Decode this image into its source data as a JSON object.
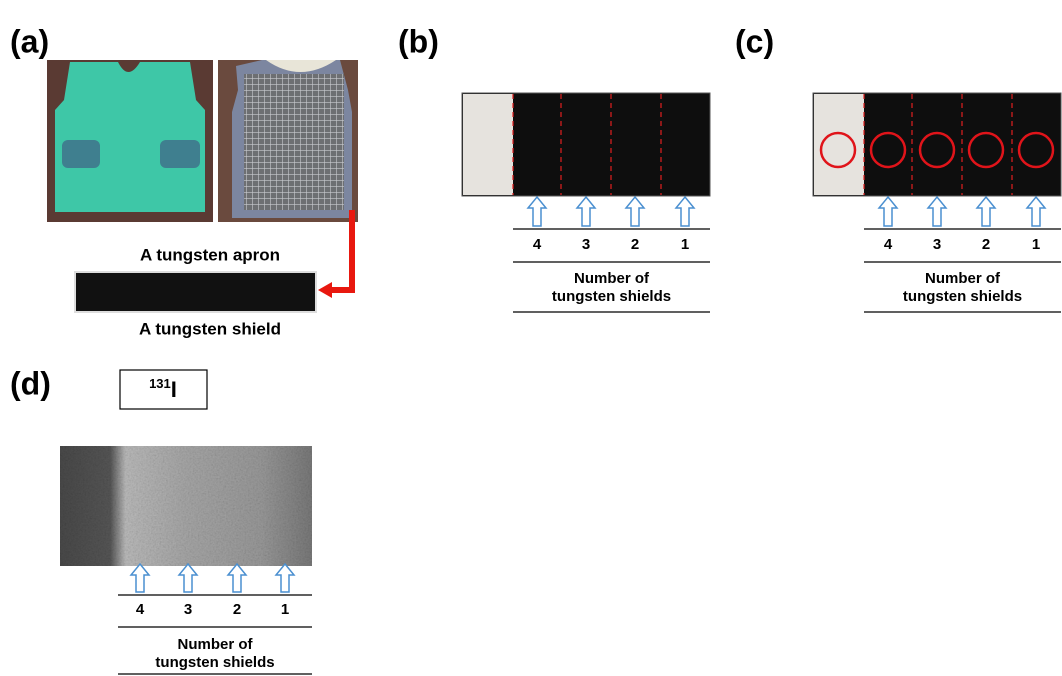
{
  "panels": {
    "a": {
      "label": "(a)",
      "apron_caption": "A tungsten apron",
      "shield_caption": "A tungsten shield"
    },
    "b": {
      "label": "(b)",
      "shield_counts": [
        "4",
        "3",
        "2",
        "1"
      ],
      "axis_title": [
        "Number of",
        "tungsten shields"
      ]
    },
    "c": {
      "label": "(c)",
      "shield_counts": [
        "4",
        "3",
        "2",
        "1"
      ],
      "axis_title": [
        "Number of",
        "tungsten shields"
      ]
    },
    "d": {
      "label": "(d)",
      "isotope_mass": "131",
      "isotope_symbol": "I",
      "shield_counts": [
        "4",
        "3",
        "2",
        "1"
      ],
      "axis_title": [
        "Number of",
        "tungsten shields"
      ]
    }
  }
}
